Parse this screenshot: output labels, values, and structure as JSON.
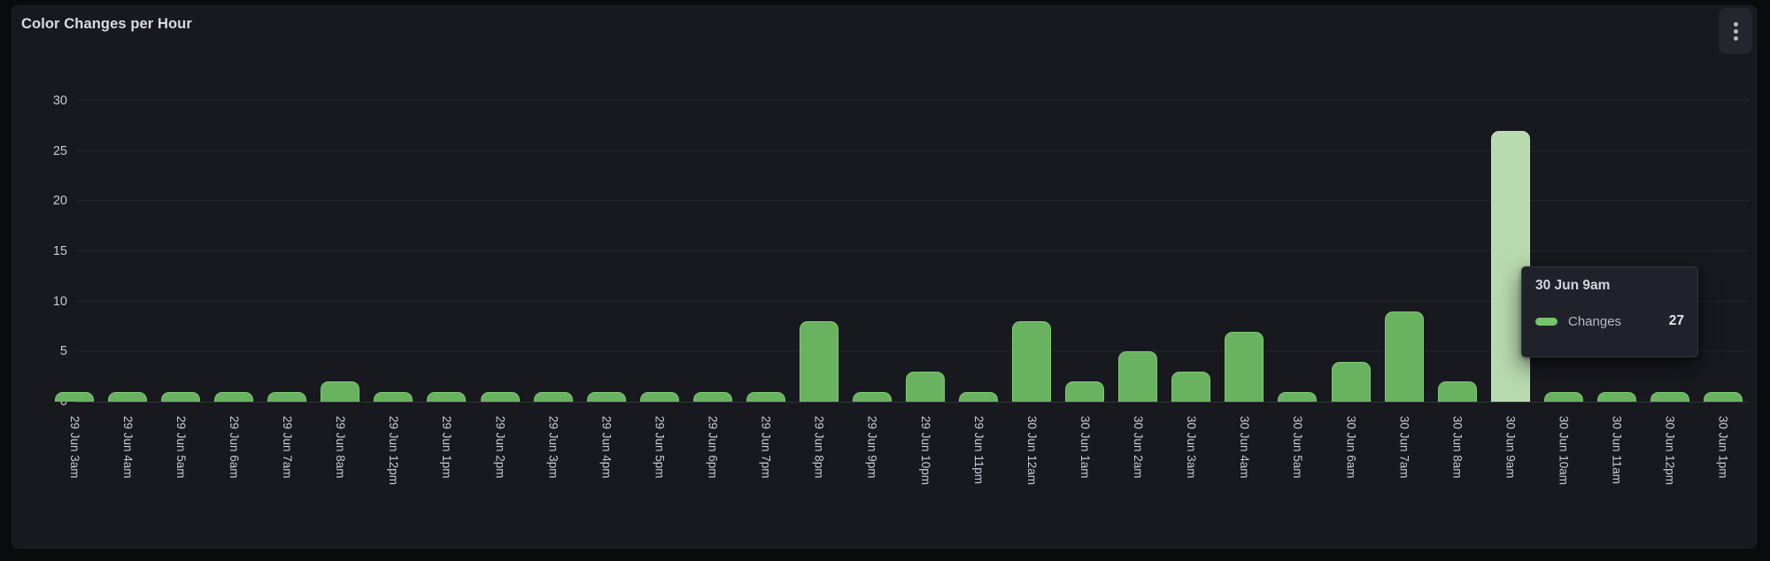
{
  "panel": {
    "title": "Color Changes per Hour",
    "menu_icon": "kebab-vertical-icon"
  },
  "chart_data": {
    "type": "bar",
    "title": "Color Changes per Hour",
    "xlabel": "",
    "ylabel": "",
    "ylim": [
      0,
      30
    ],
    "y_ticks": [
      0,
      5,
      10,
      15,
      20,
      25,
      30
    ],
    "grid": true,
    "legend_position": "none",
    "categories": [
      "29 Jun 3am",
      "29 Jun 4am",
      "29 Jun 5am",
      "29 Jun 6am",
      "29 Jun 7am",
      "29 Jun 8am",
      "29 Jun 12pm",
      "29 Jun 1pm",
      "29 Jun 2pm",
      "29 Jun 3pm",
      "29 Jun 4pm",
      "29 Jun 5pm",
      "29 Jun 6pm",
      "29 Jun 7pm",
      "29 Jun 8pm",
      "29 Jun 9pm",
      "29 Jun 10pm",
      "29 Jun 11pm",
      "30 Jun 12am",
      "30 Jun 1am",
      "30 Jun 2am",
      "30 Jun 3am",
      "30 Jun 4am",
      "30 Jun 5am",
      "30 Jun 6am",
      "30 Jun 7am",
      "30 Jun 8am",
      "30 Jun 9am",
      "30 Jun 10am",
      "30 Jun 11am",
      "30 Jun 12pm",
      "30 Jun 1pm"
    ],
    "series": [
      {
        "name": "Changes",
        "values": [
          1,
          1,
          1,
          1,
          1,
          2,
          1,
          1,
          1,
          1,
          1,
          1,
          1,
          1,
          8,
          1,
          3,
          1,
          8,
          2,
          5,
          3,
          7,
          1,
          4,
          9,
          2,
          27,
          1,
          1,
          1,
          1
        ]
      }
    ],
    "highlighted_index": 27,
    "colors": {
      "bar": "#69b25f",
      "bar_border": "#7ec873",
      "bar_highlight": "#b8daae",
      "bar_highlight_border": "#c6e2bd"
    }
  },
  "tooltip": {
    "title": "30 Jun 9am",
    "series_label": "Changes",
    "value": "27",
    "swatch_color": "#77c36b"
  }
}
